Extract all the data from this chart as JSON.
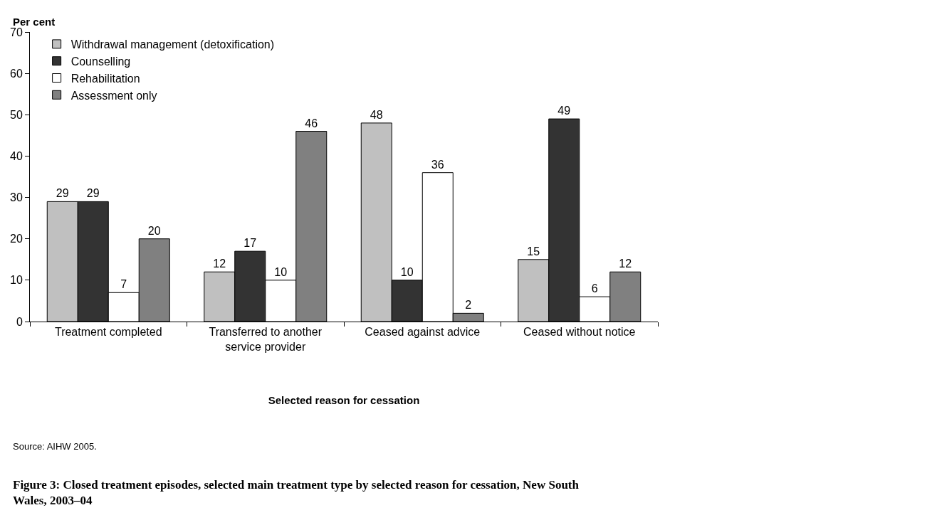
{
  "chart_data": {
    "type": "bar",
    "title": "Figure 3: Closed treatment episodes, selected main treatment type by selected reason for cessation, New South Wales, 2003–04",
    "xlabel": "Selected reason for cessation",
    "ylabel": "Per cent",
    "categories": [
      "Treatment completed",
      "Transferred to another service provider",
      "Ceased against advice",
      "Ceased without notice"
    ],
    "series": [
      {
        "name": "Withdrawal management (detoxification)",
        "color": "#c0c0c0",
        "values": [
          29,
          12,
          48,
          15
        ]
      },
      {
        "name": "Counselling",
        "color": "#333333",
        "values": [
          29,
          17,
          10,
          49
        ]
      },
      {
        "name": "Rehabilitation",
        "color": "#ffffff",
        "values": [
          7,
          10,
          36,
          6
        ]
      },
      {
        "name": "Assessment only",
        "color": "#808080",
        "values": [
          20,
          46,
          2,
          12
        ]
      }
    ],
    "ylim": [
      0,
      70
    ],
    "yticks": [
      0,
      10,
      20,
      30,
      40,
      50,
      60,
      70
    ],
    "data_labels": true,
    "legend": "top left",
    "annotations": [
      "Source: AIHW 2005."
    ]
  }
}
